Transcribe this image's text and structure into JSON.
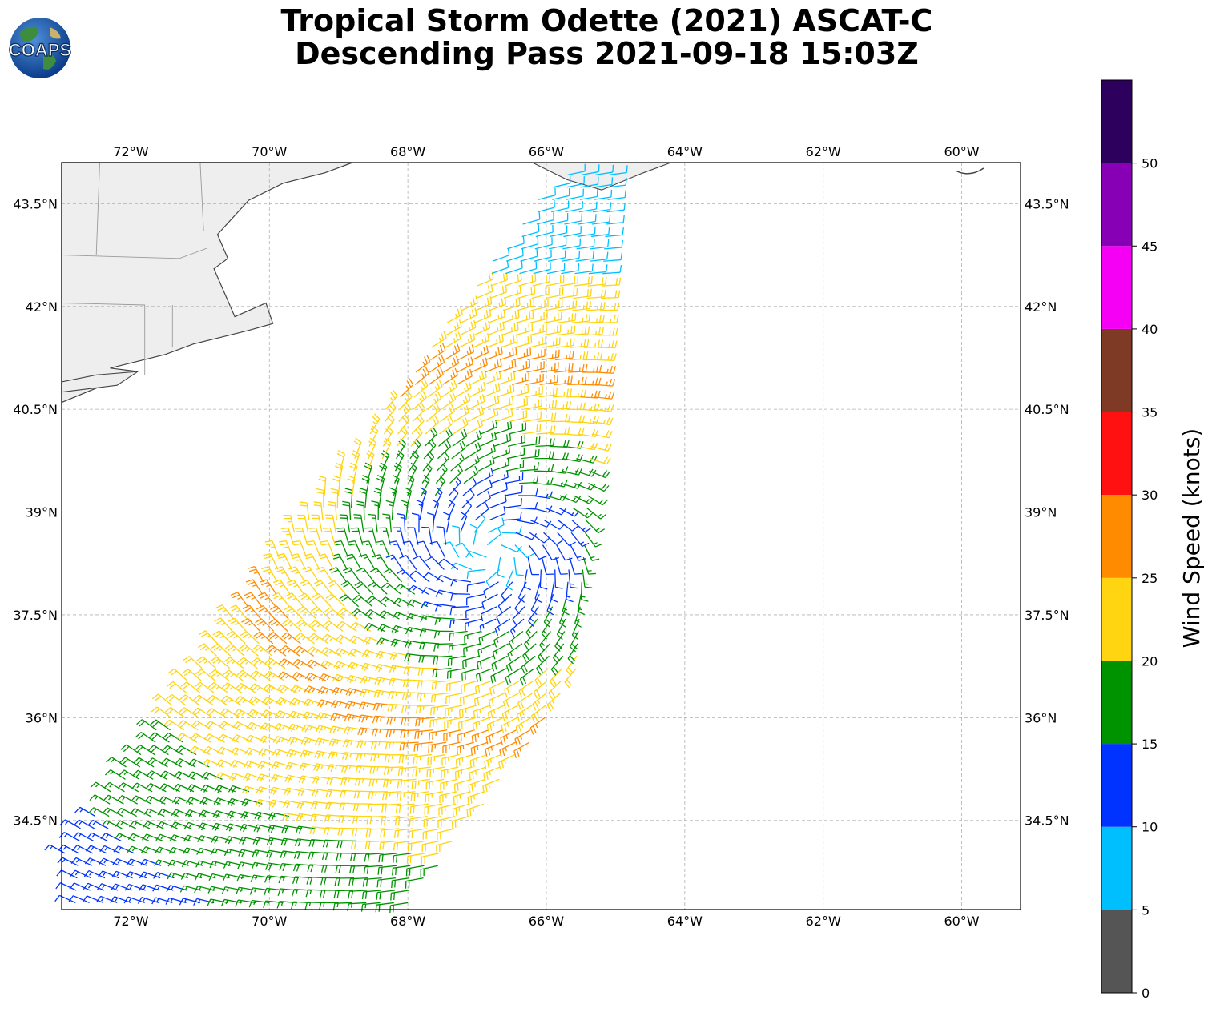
{
  "header": {
    "title_line1": "Tropical Storm Odette (2021) ASCAT-C",
    "title_line2": "Descending Pass 2021-09-18 15:03Z",
    "logo_text": "COAPS"
  },
  "map": {
    "lon_range": [
      -73.0,
      -59.15
    ],
    "lat_range": [
      33.2,
      44.1
    ],
    "lon_ticks": [
      -72,
      -70,
      -68,
      -66,
      -64,
      -62,
      -60
    ],
    "lon_tick_labels": [
      "72°W",
      "70°W",
      "68°W",
      "66°W",
      "64°W",
      "62°W",
      "60°W"
    ],
    "lat_ticks": [
      34.5,
      36,
      37.5,
      39,
      40.5,
      42,
      43.5
    ],
    "lat_tick_labels": [
      "34.5°N",
      "36°N",
      "37.5°N",
      "39°N",
      "40.5°N",
      "42°N",
      "43.5°N"
    ],
    "gridlines": true,
    "land_color": "#eeeeee",
    "coast_color": "#444444"
  },
  "storm": {
    "name": "Odette",
    "center_lon": -66.8,
    "center_lat": 38.4
  },
  "colorbar": {
    "label": "Wind Speed (knots)",
    "ticks": [
      0,
      5,
      10,
      15,
      20,
      25,
      30,
      35,
      40,
      45,
      50
    ],
    "tick_labels": [
      "0",
      "5",
      "10",
      "15",
      "20",
      "25",
      "30",
      "35",
      "40",
      "45",
      "50"
    ],
    "bins": [
      {
        "min": 0,
        "max": 5,
        "color": "#555555"
      },
      {
        "min": 5,
        "max": 10,
        "color": "#00bfff"
      },
      {
        "min": 10,
        "max": 15,
        "color": "#0033ff"
      },
      {
        "min": 15,
        "max": 20,
        "color": "#009300"
      },
      {
        "min": 20,
        "max": 25,
        "color": "#ffd411"
      },
      {
        "min": 25,
        "max": 30,
        "color": "#ff8c00"
      },
      {
        "min": 30,
        "max": 35,
        "color": "#ff1111"
      },
      {
        "min": 35,
        "max": 40,
        "color": "#7f3a26"
      },
      {
        "min": 40,
        "max": 45,
        "color": "#f500f5"
      },
      {
        "min": 45,
        "max": 50,
        "color": "#8800b5"
      },
      {
        "min": 50,
        "max": 55,
        "color": "#2c005c"
      }
    ]
  }
}
